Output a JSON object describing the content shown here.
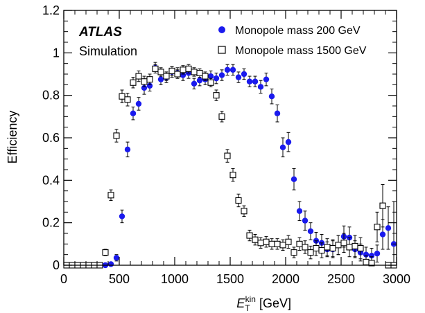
{
  "chart_data": {
    "type": "scatter",
    "title": "",
    "annotations": [
      "ATLAS",
      "Simulation"
    ],
    "xlabel": {
      "main": "E",
      "sub": "T",
      "sup": "kin",
      "unit": " [GeV]"
    },
    "ylabel": "Efficiency",
    "xlim": [
      0,
      3000
    ],
    "ylim": [
      0,
      1.2
    ],
    "x_ticks": [
      "0",
      "500",
      "1000",
      "1500",
      "2000",
      "2500",
      "3000"
    ],
    "y_ticks": [
      "0",
      "0.2",
      "0.4",
      "0.6",
      "0.8",
      "1",
      "1.2"
    ],
    "grid": false,
    "legend_position": "top-right",
    "series": [
      {
        "name": "Monopole mass 200 GeV",
        "marker": "filled-circle",
        "color": "#1a1aee",
        "x": [
          25,
          75,
          125,
          175,
          225,
          275,
          325,
          375,
          425,
          475,
          525,
          575,
          625,
          675,
          725,
          775,
          825,
          875,
          925,
          975,
          1025,
          1075,
          1125,
          1175,
          1225,
          1275,
          1325,
          1375,
          1425,
          1475,
          1525,
          1575,
          1625,
          1675,
          1725,
          1775,
          1825,
          1875,
          1925,
          1975,
          2025,
          2075,
          2125,
          2175,
          2225,
          2275,
          2325,
          2375,
          2425,
          2475,
          2525,
          2575,
          2625,
          2675,
          2725,
          2775,
          2825,
          2875,
          2925,
          2975
        ],
        "y": [
          0,
          0,
          0,
          0,
          0,
          0,
          0,
          0,
          0.005,
          0.035,
          0.23,
          0.545,
          0.715,
          0.76,
          0.835,
          0.845,
          0.93,
          0.875,
          0.885,
          0.91,
          0.905,
          0.895,
          0.905,
          0.855,
          0.87,
          0.875,
          0.89,
          0.88,
          0.895,
          0.92,
          0.92,
          0.885,
          0.9,
          0.865,
          0.865,
          0.84,
          0.875,
          0.795,
          0.715,
          0.555,
          0.58,
          0.405,
          0.255,
          0.21,
          0.16,
          0.115,
          0.105,
          0.075,
          0.075,
          0.095,
          0.135,
          0.13,
          0.075,
          0.06,
          0.05,
          0.045,
          0.055,
          0.145,
          0.175,
          0.1
        ],
        "err": [
          0,
          0,
          0,
          0,
          0,
          0,
          0,
          0,
          0.005,
          0.015,
          0.03,
          0.035,
          0.03,
          0.03,
          0.03,
          0.025,
          0.025,
          0.025,
          0.025,
          0.025,
          0.025,
          0.025,
          0.025,
          0.025,
          0.025,
          0.025,
          0.025,
          0.025,
          0.025,
          0.025,
          0.025,
          0.025,
          0.025,
          0.025,
          0.025,
          0.03,
          0.03,
          0.035,
          0.04,
          0.045,
          0.045,
          0.05,
          0.045,
          0.045,
          0.04,
          0.04,
          0.04,
          0.035,
          0.04,
          0.045,
          0.05,
          0.05,
          0.04,
          0.04,
          0.035,
          0.035,
          0.04,
          0.07,
          0.1,
          0.2
        ]
      },
      {
        "name": "Monopole mass 1500 GeV",
        "marker": "open-square",
        "color": "#000000",
        "x": [
          25,
          75,
          125,
          175,
          225,
          275,
          325,
          375,
          425,
          475,
          525,
          575,
          625,
          675,
          725,
          775,
          825,
          875,
          925,
          975,
          1025,
          1075,
          1125,
          1175,
          1225,
          1275,
          1325,
          1375,
          1425,
          1475,
          1525,
          1575,
          1625,
          1675,
          1725,
          1775,
          1825,
          1875,
          1925,
          1975,
          2025,
          2075,
          2125,
          2175,
          2225,
          2275,
          2325,
          2375,
          2425,
          2475,
          2525,
          2575,
          2625,
          2675,
          2725,
          2775,
          2825,
          2875,
          2925,
          2975
        ],
        "y": [
          0,
          0,
          0,
          0,
          0,
          0,
          0,
          0.06,
          0.33,
          0.61,
          0.795,
          0.78,
          0.86,
          0.89,
          0.865,
          0.875,
          0.925,
          0.91,
          0.89,
          0.915,
          0.9,
          0.92,
          0.925,
          0.91,
          0.905,
          0.89,
          0.86,
          0.8,
          0.7,
          0.515,
          0.425,
          0.305,
          0.255,
          0.14,
          0.12,
          0.105,
          0.11,
          0.1,
          0.1,
          0.095,
          0.11,
          0.06,
          0.1,
          0.085,
          0.06,
          0.08,
          0.07,
          0.085,
          0.08,
          0.095,
          0.105,
          0.085,
          0.09,
          0.08,
          0.015,
          0.01,
          0.18,
          0.28,
          0,
          0
        ],
        "err": [
          0,
          0,
          0,
          0,
          0,
          0,
          0,
          0.015,
          0.025,
          0.03,
          0.03,
          0.03,
          0.025,
          0.025,
          0.025,
          0.025,
          0.02,
          0.02,
          0.02,
          0.02,
          0.02,
          0.02,
          0.02,
          0.02,
          0.02,
          0.02,
          0.02,
          0.025,
          0.025,
          0.03,
          0.03,
          0.03,
          0.025,
          0.025,
          0.025,
          0.025,
          0.025,
          0.025,
          0.025,
          0.025,
          0.03,
          0.025,
          0.03,
          0.03,
          0.03,
          0.035,
          0.035,
          0.04,
          0.04,
          0.045,
          0.045,
          0.045,
          0.05,
          0.05,
          0.03,
          0.03,
          0.07,
          0.1,
          0,
          0
        ]
      }
    ]
  }
}
